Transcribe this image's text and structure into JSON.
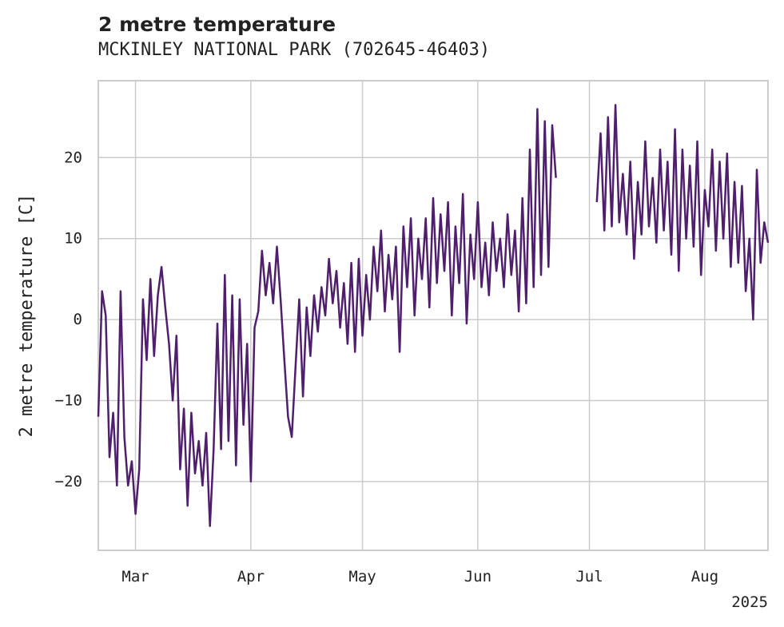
{
  "chart_data": {
    "type": "line",
    "title": "2 metre temperature",
    "subtitle": "MCKINLEY NATIONAL PARK (702645-46403)",
    "ylabel": "2 metre temperature [C]",
    "xlabel": "",
    "year_label": "2025",
    "xlim": [
      "2025-02-19",
      "2025-08-18"
    ],
    "ylim": [
      -28.5,
      29.5
    ],
    "yticks": [
      -20,
      -10,
      0,
      10,
      20
    ],
    "xticks": [
      {
        "date": "2025-03-01",
        "label": "Mar"
      },
      {
        "date": "2025-04-01",
        "label": "Apr"
      },
      {
        "date": "2025-05-01",
        "label": "May"
      },
      {
        "date": "2025-06-01",
        "label": "Jun"
      },
      {
        "date": "2025-07-01",
        "label": "Jul"
      },
      {
        "date": "2025-08-01",
        "label": "Aug"
      }
    ],
    "grid": true,
    "line_color": "#4f1f6e",
    "series": [
      {
        "values": [
          [
            "2025-02-19",
            -12.0
          ],
          [
            "2025-02-20",
            3.5
          ],
          [
            "2025-02-21",
            0.5
          ],
          [
            "2025-02-22",
            -17.0
          ],
          [
            "2025-02-23",
            -11.5
          ],
          [
            "2025-02-24",
            -20.5
          ],
          [
            "2025-02-25",
            3.5
          ],
          [
            "2025-02-26",
            -14.5
          ],
          [
            "2025-02-27",
            -20.5
          ],
          [
            "2025-02-28",
            -17.5
          ],
          [
            "2025-03-01",
            -24.0
          ],
          [
            "2025-03-02",
            -18.5
          ],
          [
            "2025-03-03",
            2.5
          ],
          [
            "2025-03-04",
            -5.0
          ],
          [
            "2025-03-05",
            5.0
          ],
          [
            "2025-03-06",
            -4.5
          ],
          [
            "2025-03-07",
            3.0
          ],
          [
            "2025-03-08",
            6.5
          ],
          [
            "2025-03-09",
            1.5
          ],
          [
            "2025-03-10",
            -3.0
          ],
          [
            "2025-03-11",
            -10.0
          ],
          [
            "2025-03-12",
            -2.0
          ],
          [
            "2025-03-13",
            -18.5
          ],
          [
            "2025-03-14",
            -11.0
          ],
          [
            "2025-03-15",
            -23.0
          ],
          [
            "2025-03-16",
            -11.5
          ],
          [
            "2025-03-17",
            -19.0
          ],
          [
            "2025-03-18",
            -15.0
          ],
          [
            "2025-03-19",
            -20.5
          ],
          [
            "2025-03-20",
            -14.0
          ],
          [
            "2025-03-21",
            -25.5
          ],
          [
            "2025-03-22",
            -16.0
          ],
          [
            "2025-03-23",
            -0.5
          ],
          [
            "2025-03-24",
            -16.0
          ],
          [
            "2025-03-25",
            5.5
          ],
          [
            "2025-03-26",
            -15.0
          ],
          [
            "2025-03-27",
            3.0
          ],
          [
            "2025-03-28",
            -18.0
          ],
          [
            "2025-03-29",
            2.5
          ],
          [
            "2025-03-30",
            -13.0
          ],
          [
            "2025-03-31",
            -3.0
          ],
          [
            "2025-04-01",
            -20.0
          ],
          [
            "2025-04-02",
            -1.0
          ],
          [
            "2025-04-03",
            1.0
          ],
          [
            "2025-04-04",
            8.5
          ],
          [
            "2025-04-05",
            3.0
          ],
          [
            "2025-04-06",
            7.0
          ],
          [
            "2025-04-07",
            2.0
          ],
          [
            "2025-04-08",
            9.0
          ],
          [
            "2025-04-09",
            2.5
          ],
          [
            "2025-04-10",
            -5.0
          ],
          [
            "2025-04-11",
            -12.0
          ],
          [
            "2025-04-12",
            -14.5
          ],
          [
            "2025-04-13",
            -6.0
          ],
          [
            "2025-04-14",
            2.5
          ],
          [
            "2025-04-15",
            -9.5
          ],
          [
            "2025-04-16",
            1.5
          ],
          [
            "2025-04-17",
            -4.5
          ],
          [
            "2025-04-18",
            3.0
          ],
          [
            "2025-04-19",
            -1.5
          ],
          [
            "2025-04-20",
            4.0
          ],
          [
            "2025-04-21",
            0.5
          ],
          [
            "2025-04-22",
            7.5
          ],
          [
            "2025-04-23",
            2.0
          ],
          [
            "2025-04-24",
            6.0
          ],
          [
            "2025-04-25",
            -1.0
          ],
          [
            "2025-04-26",
            4.5
          ],
          [
            "2025-04-27",
            -3.0
          ],
          [
            "2025-04-28",
            7.0
          ],
          [
            "2025-04-29",
            -4.0
          ],
          [
            "2025-04-30",
            7.5
          ],
          [
            "2025-05-01",
            -2.0
          ],
          [
            "2025-05-02",
            5.5
          ],
          [
            "2025-05-03",
            0.0
          ],
          [
            "2025-05-04",
            9.0
          ],
          [
            "2025-05-05",
            3.5
          ],
          [
            "2025-05-06",
            11.0
          ],
          [
            "2025-05-07",
            1.0
          ],
          [
            "2025-05-08",
            8.0
          ],
          [
            "2025-05-09",
            2.5
          ],
          [
            "2025-05-10",
            9.0
          ],
          [
            "2025-05-11",
            -4.0
          ],
          [
            "2025-05-12",
            11.5
          ],
          [
            "2025-05-13",
            4.0
          ],
          [
            "2025-05-14",
            12.5
          ],
          [
            "2025-05-15",
            0.5
          ],
          [
            "2025-05-16",
            10.0
          ],
          [
            "2025-05-17",
            5.0
          ],
          [
            "2025-05-18",
            12.5
          ],
          [
            "2025-05-19",
            1.5
          ],
          [
            "2025-05-20",
            15.0
          ],
          [
            "2025-05-21",
            4.5
          ],
          [
            "2025-05-22",
            13.0
          ],
          [
            "2025-05-23",
            6.0
          ],
          [
            "2025-05-24",
            14.5
          ],
          [
            "2025-05-25",
            0.5
          ],
          [
            "2025-05-26",
            11.5
          ],
          [
            "2025-05-27",
            4.5
          ],
          [
            "2025-05-28",
            15.5
          ],
          [
            "2025-05-29",
            -0.5
          ],
          [
            "2025-05-30",
            10.5
          ],
          [
            "2025-05-31",
            5.0
          ],
          [
            "2025-06-01",
            14.5
          ],
          [
            "2025-06-02",
            4.0
          ],
          [
            "2025-06-03",
            9.5
          ],
          [
            "2025-06-04",
            3.0
          ],
          [
            "2025-06-05",
            12.0
          ],
          [
            "2025-06-06",
            6.0
          ],
          [
            "2025-06-07",
            10.0
          ],
          [
            "2025-06-08",
            4.0
          ],
          [
            "2025-06-09",
            13.0
          ],
          [
            "2025-06-10",
            5.5
          ],
          [
            "2025-06-11",
            11.0
          ],
          [
            "2025-06-12",
            1.0
          ],
          [
            "2025-06-13",
            15.0
          ],
          [
            "2025-06-14",
            2.0
          ],
          [
            "2025-06-15",
            21.0
          ],
          [
            "2025-06-16",
            4.0
          ],
          [
            "2025-06-17",
            26.0
          ],
          [
            "2025-06-18",
            5.5
          ],
          [
            "2025-06-19",
            24.5
          ],
          [
            "2025-06-20",
            6.5
          ],
          [
            "2025-06-21",
            24.0
          ],
          [
            "2025-06-22",
            17.5
          ],
          [
            "2025-07-03",
            14.5
          ],
          [
            "2025-07-04",
            23.0
          ],
          [
            "2025-07-05",
            11.0
          ],
          [
            "2025-07-06",
            25.0
          ],
          [
            "2025-07-07",
            11.5
          ],
          [
            "2025-07-08",
            26.5
          ],
          [
            "2025-07-09",
            12.0
          ],
          [
            "2025-07-10",
            18.0
          ],
          [
            "2025-07-11",
            10.5
          ],
          [
            "2025-07-12",
            19.5
          ],
          [
            "2025-07-13",
            7.5
          ],
          [
            "2025-07-14",
            17.0
          ],
          [
            "2025-07-15",
            10.5
          ],
          [
            "2025-07-16",
            22.0
          ],
          [
            "2025-07-17",
            11.5
          ],
          [
            "2025-07-18",
            17.5
          ],
          [
            "2025-07-19",
            9.5
          ],
          [
            "2025-07-20",
            21.0
          ],
          [
            "2025-07-21",
            11.0
          ],
          [
            "2025-07-22",
            19.5
          ],
          [
            "2025-07-23",
            8.0
          ],
          [
            "2025-07-24",
            23.5
          ],
          [
            "2025-07-25",
            6.0
          ],
          [
            "2025-07-26",
            21.0
          ],
          [
            "2025-07-27",
            10.0
          ],
          [
            "2025-07-28",
            19.0
          ],
          [
            "2025-07-29",
            9.0
          ],
          [
            "2025-07-30",
            22.0
          ],
          [
            "2025-07-31",
            5.5
          ],
          [
            "2025-08-01",
            16.0
          ],
          [
            "2025-08-02",
            11.5
          ],
          [
            "2025-08-03",
            21.0
          ],
          [
            "2025-08-04",
            8.5
          ],
          [
            "2025-08-05",
            19.5
          ],
          [
            "2025-08-06",
            10.0
          ],
          [
            "2025-08-07",
            20.5
          ],
          [
            "2025-08-08",
            6.5
          ],
          [
            "2025-08-09",
            17.0
          ],
          [
            "2025-08-10",
            7.0
          ],
          [
            "2025-08-11",
            16.5
          ],
          [
            "2025-08-12",
            3.5
          ],
          [
            "2025-08-13",
            10.0
          ],
          [
            "2025-08-14",
            0.0
          ],
          [
            "2025-08-15",
            18.5
          ],
          [
            "2025-08-16",
            7.0
          ],
          [
            "2025-08-17",
            12.0
          ],
          [
            "2025-08-18",
            9.5
          ]
        ]
      }
    ]
  }
}
